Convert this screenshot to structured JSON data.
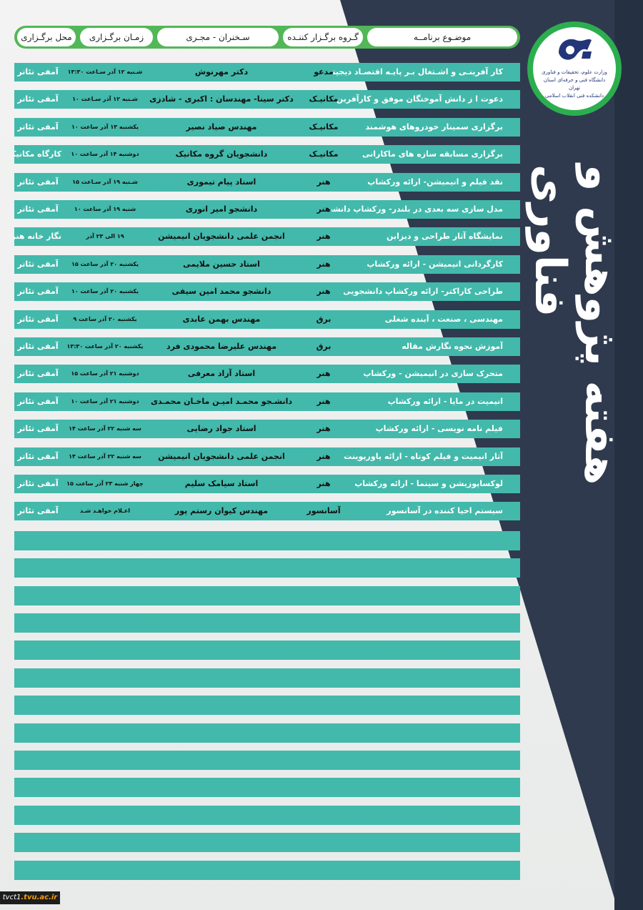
{
  "page": {
    "title": "هفته پژوهش و فناوری",
    "footer": {
      "prefix": "tvct1",
      "suffix": ".tvu.ac.ir"
    }
  },
  "logo": {
    "line1": "وزارت علوم، تحقیقات و فناوری",
    "line2": "دانشگاه فنی و حرفه‌ای استان تهران",
    "line3": "دانشکده فنی انقلاب اسلامی"
  },
  "header": {
    "topic": "موضـوع برنامــه",
    "group": "گـروه برگـزار کننـده",
    "speaker": "سـخنران - مجـری",
    "time": "زمـان برگـزاری",
    "venue": "محل برگـزاری"
  },
  "events": [
    {
      "topic": "کار آفرینـی و اشـتغال بـر پایـه اقتصـاد دیجیتـال",
      "group": "مدعو",
      "speaker": "دکتر مهرنوش",
      "time": "شـنبه ۱۲ آذر سـاعت ۱۳:۳۰",
      "venue": "آمفی تئاتر"
    },
    {
      "topic": "دعوت ا ز دانش آموختگان موفق و کارآفرین",
      "group": "مکانیـک",
      "speaker": "دکتر سینا- مهندسان : اکبری - شادزی",
      "time": "شـنبه ۱۲ آذر سـاعت ۱۰",
      "venue": "آمفی تئاتر"
    },
    {
      "topic": "برگزاری سمینار خودروهای هوشمند",
      "group": "مکانیـک",
      "speaker": "مهندس صیاد نصیر",
      "time": "یکشنبه ۱۳ آذر ساعت ۱۰",
      "venue": "آمفی تئاتر"
    },
    {
      "topic": "برگزاری مسابقه سازه های ماکارانی",
      "group": "مکانیـک",
      "speaker": "دانشجویان گروه مکانیک",
      "time": "دوشنبه ۱۴ آذر ساعت ۱۰",
      "venue": "کارگاه مکانیک"
    },
    {
      "topic": "نقد فیلم و انیمیشن- ارائه ورکشاپ",
      "group": "هنر",
      "speaker": "استاد پیام تیموری",
      "time": "شـنبه ۱۹ آذر سـاعت ۱۵",
      "venue": "آمفی تئاتر"
    },
    {
      "topic": "مدل سازی سه بعدی در بلندر- ورکشاپ دانشجویی",
      "group": "هنر",
      "speaker": "دانشجو امیر انوری",
      "time": "شنبه ۱۹ آذر ساعت ۱۰",
      "venue": "آمفی تئاتر"
    },
    {
      "topic": "نمایشگاه آثار طراحی و دیزاین",
      "group": "هنر",
      "speaker": "انجمن علمی دانشجویان انیمیشن",
      "time": "۱۹ الی ۲۳ آذر",
      "venue": "نگار خانه هنر"
    },
    {
      "topic": "کارگردانی انیمیشن - ارائه ورکشاپ",
      "group": "هنر",
      "speaker": "استاد حسین ملایمی",
      "time": "یکشنبه ۲۰ آذر ساعت ۱۵",
      "venue": "آمفی تئاتر"
    },
    {
      "topic": "طراحی کاراکتر- ارائه  ورکشاپ دانشجویی",
      "group": "هنر",
      "speaker": "دانشجو محمد امین سیفی",
      "time": "یکشنبه ۲۰ آذر ساعت ۱۰",
      "venue": "آمفی تئاتر"
    },
    {
      "topic": "مهندسی ، صنعت ، آینده شغلی",
      "group": "برق",
      "speaker": "مهندس بهمن عابدی",
      "time": "یکشنبه ۲۰ آذر ساعت ۹",
      "venue": "آمفی تئاتر"
    },
    {
      "topic": "آموزش نحوه نگارش مقاله",
      "group": "برق",
      "speaker": "مهندس علیرضا محمودی فرد",
      "time": "یکشنبه ۲۰ آذر ساعت ۱۳:۳۰",
      "venue": "آمفی تئاتر"
    },
    {
      "topic": "متحرک سازی در انیمیشن - ورکشاپ",
      "group": "هنر",
      "speaker": "استاد آزاد معرفی",
      "time": "دوشنبه ۲۱ آذر ساعت ۱۵",
      "venue": "آمفی تئاتر"
    },
    {
      "topic": "انیمیت در مایا - ارائه ورکشاپ",
      "group": "هنر",
      "speaker": "دانشـجو محمـد امیـن ماخـان محمـدی",
      "time": "دوشنبه ۲۱ آذر ساعت ۱۰",
      "venue": "آمفی تئاتر"
    },
    {
      "topic": "فیلم نامه نویسی - ارائه ورکشاپ",
      "group": "هنر",
      "speaker": "استاد جواد رضایی",
      "time": "سه شنبه ۲۲ آذر ساعت ۱۴",
      "venue": "آمفی تئاتر"
    },
    {
      "topic": "آثار انیمیت و فیلم کوتاه - ارائه پاورپوینت",
      "group": "هنر",
      "speaker": "انجمن علمی دانشجویان انیمیشن",
      "time": "سه شنبه ۲۲ آذر ساعت ۱۴",
      "venue": "آمفی تئاتر"
    },
    {
      "topic": "لوکساپوزیشن و سینما - ارائه ورکشاپ",
      "group": "هنر",
      "speaker": "استاد سیامک سلیم",
      "time": "چهار شنبه ۲۳ آذر ساعت ۱۵",
      "venue": "آمفی تئاتر"
    },
    {
      "topic": "سیستم احیا کننده در آسانسور",
      "group": "آسانسور",
      "speaker": "مهندس کیوان رستم پور",
      "time": "اعـلام خواهـد شـد",
      "venue": "آمفی تئاتر"
    }
  ]
}
